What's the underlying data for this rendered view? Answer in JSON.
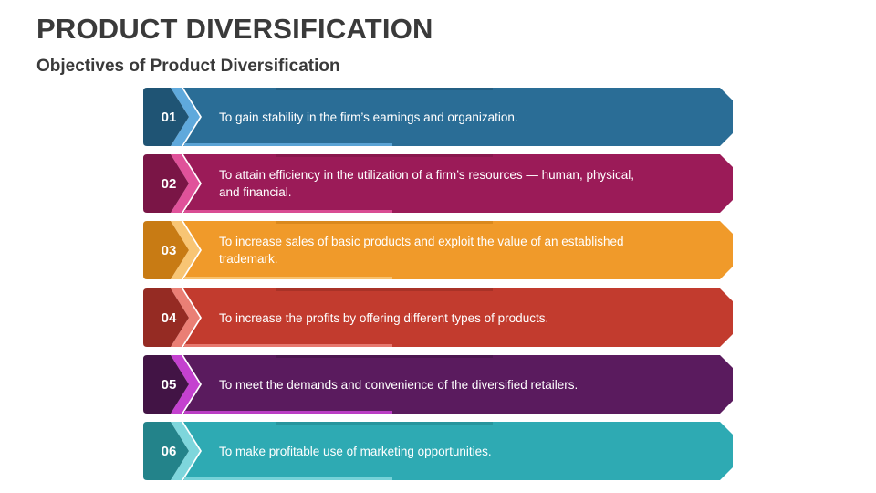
{
  "title": "PRODUCT DIVERSIFICATION",
  "subtitle": "Objectives of Product Diversification",
  "items": [
    {
      "number": "01",
      "text": "To gain stability in the firm’s earnings and organization.",
      "color": "#2A6D96",
      "dark": "#1F5474",
      "light": "#5FA9DC"
    },
    {
      "number": "02",
      "text": "To attain efficiency in the utilization of a firm’s resources — human, physical, and financial.",
      "color": "#9B1B58",
      "dark": "#7A1546",
      "light": "#E0529A"
    },
    {
      "number": "03",
      "text": "To increase sales of basic products and exploit the value of an established trademark.",
      "color": "#F09A2A",
      "dark": "#C87B14",
      "light": "#F8C574"
    },
    {
      "number": "04",
      "text": "To increase the profits by offering different types of products.",
      "color": "#C23B2E",
      "dark": "#952B23",
      "light": "#EA7F75"
    },
    {
      "number": "05",
      "text": "To meet the demands and convenience of the diversified retailers.",
      "color": "#5A1B5E",
      "dark": "#421445",
      "light": "#C441CF"
    },
    {
      "number": "06",
      "text": "To make profitable use of marketing opportunities.",
      "color": "#2EAAB3",
      "dark": "#23838A",
      "light": "#7ED6DC"
    }
  ]
}
